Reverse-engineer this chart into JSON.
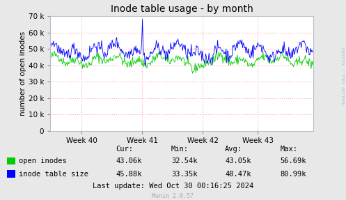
{
  "title": "Inode table usage - by month",
  "ylabel": "number of open inodes",
  "xlabel_ticks": [
    "Week 40",
    "Week 41",
    "Week 42",
    "Week 43"
  ],
  "xlabel_tick_positions": [
    0.12,
    0.35,
    0.58,
    0.79
  ],
  "ylim": [
    0,
    70000
  ],
  "yticks": [
    0,
    10000,
    20000,
    30000,
    40000,
    50000,
    60000,
    70000
  ],
  "ytick_labels": [
    "0",
    "10 k",
    "20 k",
    "30 k",
    "40 k",
    "50 k",
    "60 k",
    "70 k"
  ],
  "bg_color": "#e8e8e8",
  "plot_bg_color": "#ffffff",
  "grid_color": "#ffaaaa",
  "line_green_color": "#00cc00",
  "line_blue_color": "#0000ff",
  "legend": [
    {
      "label": "open inodes",
      "color": "#00cc00"
    },
    {
      "label": "inode table size",
      "color": "#0000ff"
    }
  ],
  "stats_headers": [
    "Cur:",
    "Min:",
    "Avg:",
    "Max:"
  ],
  "stats_green": [
    "43.06k",
    "32.54k",
    "43.05k",
    "56.69k"
  ],
  "stats_blue": [
    "45.88k",
    "33.35k",
    "48.47k",
    "80.99k"
  ],
  "last_update": "Last update: Wed Oct 30 00:16:25 2024",
  "munin_version": "Munin 2.0.57",
  "rrdtool_label": "RRDTOOL / TOBI OETIKER",
  "n_points": 400
}
